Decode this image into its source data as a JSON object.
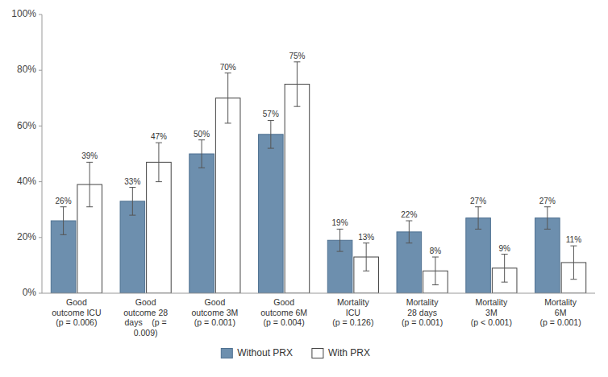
{
  "chart_data": {
    "type": "bar",
    "categories": [
      "Good\noutcome ICU\n(p = 0.006)",
      "Good\noutcome 28\ndays    (p =\n0.009)",
      "Good\noutcome 3M\n(p = 0.001)",
      "Good\noutcome 6M\n(p = 0.004)",
      "Mortality\nICU\n(p = 0.126)",
      "Mortality\n28 days\n(p = 0.001)",
      "Mortality\n3M\n(p < 0.001)",
      "Mortality\n6M\n(p = 0.001)"
    ],
    "series": [
      {
        "name": "Without PRX",
        "color": "#6d8fae",
        "values": [
          26,
          33,
          50,
          57,
          19,
          22,
          27,
          27
        ],
        "errors": [
          5,
          5,
          5,
          5,
          4,
          4,
          4,
          4
        ],
        "value_labels": [
          "26%",
          "33%",
          "50%",
          "57%",
          "19%",
          "22%",
          "27%",
          "27%"
        ]
      },
      {
        "name": "With PRX",
        "color": "#ffffff",
        "values": [
          39,
          47,
          70,
          75,
          13,
          8,
          9,
          11
        ],
        "errors": [
          8,
          7,
          9,
          8,
          5,
          5,
          5,
          6
        ],
        "value_labels": [
          "39%",
          "47%",
          "70%",
          "75%",
          "13%",
          "8%",
          "9%",
          "11%"
        ]
      }
    ],
    "ylim": [
      0,
      100
    ],
    "yticks": [
      {
        "value": 0,
        "label": "0%"
      },
      {
        "value": 20,
        "label": "20%"
      },
      {
        "value": 40,
        "label": "40%"
      },
      {
        "value": 60,
        "label": "60%"
      },
      {
        "value": 80,
        "label": "80%"
      },
      {
        "value": 100,
        "label": "100%"
      }
    ],
    "grid": false,
    "data_labels": true,
    "legend": "bottom"
  }
}
